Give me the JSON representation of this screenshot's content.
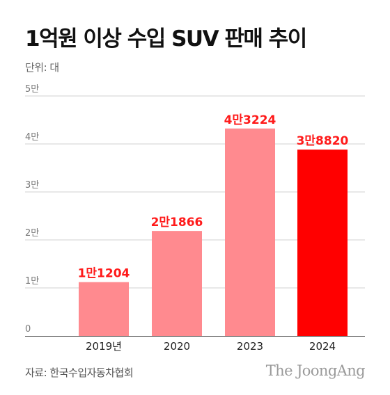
{
  "header": {
    "title": "1억원 이상 수입 SUV 판매 추이",
    "unit": "단위: 대"
  },
  "footer": {
    "source": "자료: 한국수입자동차협회",
    "brand": "The JoongAng"
  },
  "chart_data": {
    "type": "bar",
    "categories": [
      "2019년",
      "2020",
      "2023",
      "2024"
    ],
    "values": [
      11204,
      21866,
      43224,
      38820
    ],
    "data_labels": [
      "1만1204",
      "2만1866",
      "4만3224",
      "3만8820"
    ],
    "yticks": [
      {
        "value": 0,
        "label": "0"
      },
      {
        "value": 10000,
        "label": "1만"
      },
      {
        "value": 20000,
        "label": "2만"
      },
      {
        "value": 30000,
        "label": "3만"
      },
      {
        "value": 40000,
        "label": "4만"
      },
      {
        "value": 50000,
        "label": "5만"
      }
    ],
    "ylim": [
      0,
      50000
    ],
    "grid": true,
    "colors": {
      "bar": "#ff8a8f",
      "highlight_bar": "#ff0000",
      "data_label": "#ff1a1a",
      "grid": "#d0d0d0",
      "axis": "#444444"
    },
    "highlight_index": 3
  }
}
